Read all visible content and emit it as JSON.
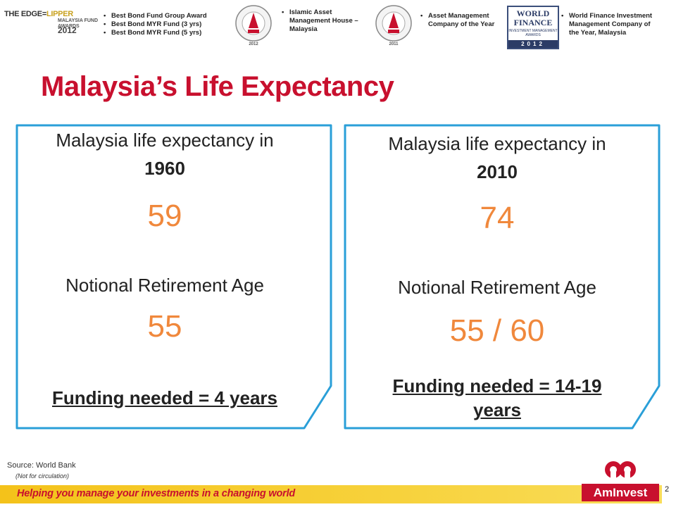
{
  "awards": {
    "edge_logo": {
      "line1a": "THE EDGE",
      "line1b": "LIPPER",
      "line2": "MALAYSIA FUND AWARDS",
      "year": "2012"
    },
    "group1": [
      "Best Bond Fund Group Award",
      "Best Bond MYR Fund (3 yrs)",
      "Best Bond MYR Fund (5 yrs)"
    ],
    "group2": [
      "Islamic Asset",
      "Management House –",
      "Malaysia"
    ],
    "seal1_year": "2012",
    "group3": [
      "Asset Management",
      "Company of the Year"
    ],
    "seal2_year": "2011",
    "world_finance": {
      "line1": "WORLD",
      "line2": "FINANCE",
      "sub": "INVESTMENT MANAGEMENT AWARDS",
      "year": "2012"
    },
    "group4": [
      "World Finance Investment",
      "Management Company of",
      "the Year, Malaysia"
    ]
  },
  "title": "Malaysia’s Life Expectancy",
  "panel_1960": {
    "label": "Malaysia life expectancy  in",
    "year": "1960",
    "life_expectancy": "59",
    "retirement_label": "Notional Retirement Age",
    "retirement_age": "55",
    "funding": "Funding needed = 4 years"
  },
  "panel_2010": {
    "label": "Malaysia life expectancy in",
    "year": "2010",
    "life_expectancy": "74",
    "retirement_label": "Notional Retirement Age",
    "retirement_age": "55 / 60",
    "funding_line1": "Funding needed = 14-19",
    "funding_line2": "years"
  },
  "footer": {
    "source": "Source:  World Bank",
    "not_for_circulation": "(Not for circulation)",
    "slogan": "Helping you manage your investments in a changing world",
    "brand": "AmInvest",
    "page_number": "2"
  },
  "colors": {
    "title_red": "#c8102e",
    "accent_orange": "#f0883c",
    "panel_border": "#2a9fd8",
    "slogan_yellow": "#f4c21a"
  }
}
